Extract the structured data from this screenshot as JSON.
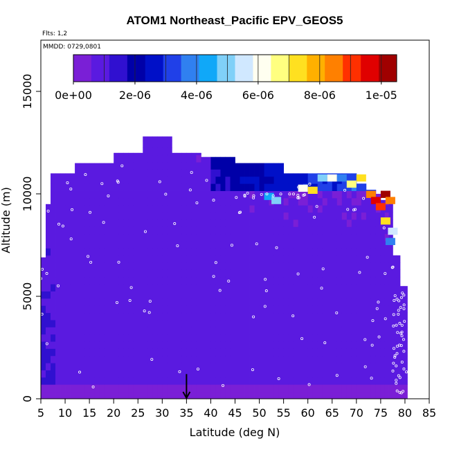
{
  "chart_data": {
    "type": "heatmap",
    "title": "ATOM1 Northeast_Pacific EPV_GEOS5",
    "flights_text": "Flts: 1,2",
    "dates_text": "MMDD: 0729,0801",
    "xlabel": "Latitude (deg N)",
    "ylabel": "Altitude (m)",
    "xlim": [
      5,
      85
    ],
    "ylim": [
      0,
      17500
    ],
    "xticks": [
      "5",
      "10",
      "15",
      "20",
      "25",
      "30",
      "35",
      "40",
      "45",
      "50",
      "55",
      "60",
      "65",
      "70",
      "75",
      "80",
      "85"
    ],
    "yticks": [
      "0",
      "5000",
      "10000",
      "15000"
    ],
    "colorbar": {
      "min": 0,
      "max": 1.05e-05,
      "ticks": [
        "0e+00",
        "2e-06",
        "4e-06",
        "6e-06",
        "8e-06",
        "1e-05"
      ],
      "tick_values": [
        0,
        2e-06,
        4e-06,
        6e-06,
        8e-06,
        1e-05
      ],
      "colors": [
        "#7a1fd6",
        "#5a1ae0",
        "#3010d0",
        "#0000a8",
        "#0010c8",
        "#2040e8",
        "#3080f0",
        "#10a8f8",
        "#80d0f8",
        "#d0e8ff",
        "#fffff0",
        "#ffff80",
        "#ffe020",
        "#ffb000",
        "#ff8000",
        "#ff3000",
        "#e00000",
        "#a00000"
      ]
    },
    "marker": {
      "x": 35,
      "y": 800
    },
    "columns": [
      {
        "lat0": 5.0,
        "lat1": 6.0,
        "top": 6900
      },
      {
        "lat0": 6.0,
        "lat1": 7.0,
        "top": 9500
      },
      {
        "lat0": 7.0,
        "lat1": 12.0,
        "top": 11000
      },
      {
        "lat0": 12.0,
        "lat1": 20.0,
        "top": 11500
      },
      {
        "lat0": 20.0,
        "lat1": 26.0,
        "top": 12000
      },
      {
        "lat0": 26.0,
        "lat1": 32.0,
        "top": 12800
      },
      {
        "lat0": 32.0,
        "lat1": 38.0,
        "top": 12000
      },
      {
        "lat0": 38.0,
        "lat1": 45.0,
        "top": 11800
      },
      {
        "lat0": 45.0,
        "lat1": 55.0,
        "top": 11500
      },
      {
        "lat0": 55.0,
        "lat1": 62.0,
        "top": 11000
      },
      {
        "lat0": 62.0,
        "lat1": 70.0,
        "top": 11000
      },
      {
        "lat0": 70.0,
        "lat1": 72.0,
        "top": 10500
      },
      {
        "lat0": 72.0,
        "lat1": 74.0,
        "top": 10200
      },
      {
        "lat0": 74.0,
        "lat1": 75.0,
        "top": 10000
      },
      {
        "lat0": 75.0,
        "lat1": 77.5,
        "top": 9700
      },
      {
        "lat0": 77.5,
        "lat1": 79.0,
        "top": 7000
      },
      {
        "lat0": 79.0,
        "lat1": 80.5,
        "top": 5500
      }
    ],
    "hotspots": [
      {
        "lat": 52.0,
        "alt": 9700,
        "value": 4.5e-06
      },
      {
        "lat": 53.5,
        "alt": 9500,
        "value": 5e-06
      },
      {
        "lat": 59.0,
        "alt": 10100,
        "value": 6e-06
      },
      {
        "lat": 61.0,
        "alt": 10000,
        "value": 7.5e-06
      },
      {
        "lat": 63.0,
        "alt": 10600,
        "value": 5e-06
      },
      {
        "lat": 65.0,
        "alt": 10600,
        "value": 6e-06
      },
      {
        "lat": 67.0,
        "alt": 10600,
        "value": 4e-06
      },
      {
        "lat": 69.0,
        "alt": 10300,
        "value": 6.5e-06
      },
      {
        "lat": 71.0,
        "alt": 10600,
        "value": 7.5e-06
      },
      {
        "lat": 73.0,
        "alt": 9800,
        "value": 8.5e-06
      },
      {
        "lat": 74.0,
        "alt": 9500,
        "value": 9.5e-06
      },
      {
        "lat": 75.0,
        "alt": 9200,
        "value": 9e-06
      },
      {
        "lat": 76.0,
        "alt": 9800,
        "value": 1e-05
      },
      {
        "lat": 77.0,
        "alt": 9500,
        "value": 8.5e-06
      },
      {
        "lat": 76.0,
        "alt": 8500,
        "value": 7e-06
      },
      {
        "lat": 77.5,
        "alt": 8000,
        "value": 5.5e-06
      },
      {
        "lat": 77.0,
        "alt": 7500,
        "value": 4e-06
      }
    ]
  }
}
